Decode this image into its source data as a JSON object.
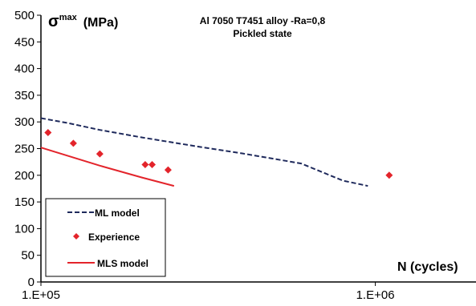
{
  "chart_data": {
    "type": "line",
    "title": "Al 7050 T7451 alloy -Ra=0,8",
    "subtitle": "Pickled state",
    "ylabel": "σ",
    "ylabel_sup": "max",
    "ylabel_unit": "(MPa)",
    "xlabel": "N (cycles)",
    "x_scale": "log",
    "xlim": [
      100000,
      2000000
    ],
    "ylim": [
      0,
      500
    ],
    "y_ticks": [
      0,
      50,
      100,
      150,
      200,
      250,
      300,
      350,
      400,
      450,
      500
    ],
    "x_ticks": [
      {
        "value": 100000,
        "label": "1.E+05"
      },
      {
        "value": 1000000,
        "label": "1.E+06"
      }
    ],
    "grid": false,
    "legend_position": "bottom-left",
    "series": [
      {
        "name": "ML model",
        "kind": "line",
        "style": "dashed",
        "color": "#1f2a5c",
        "x": [
          100000,
          120000,
          150000,
          200000,
          300000,
          400000,
          600000,
          800000,
          950000
        ],
        "y": [
          307,
          298,
          285,
          271,
          253,
          241,
          222,
          190,
          180
        ]
      },
      {
        "name": "Experience",
        "kind": "scatter",
        "marker": "diamond",
        "color": "#e3242b",
        "x": [
          105000,
          125000,
          150000,
          205000,
          215000,
          240000,
          1100000
        ],
        "y": [
          280,
          260,
          240,
          220,
          220,
          210,
          200
        ]
      },
      {
        "name": "MLS model",
        "kind": "line",
        "style": "solid",
        "color": "#e3242b",
        "x": [
          100000,
          150000,
          200000,
          250000
        ],
        "y": [
          252,
          218,
          196,
          180
        ]
      }
    ]
  }
}
